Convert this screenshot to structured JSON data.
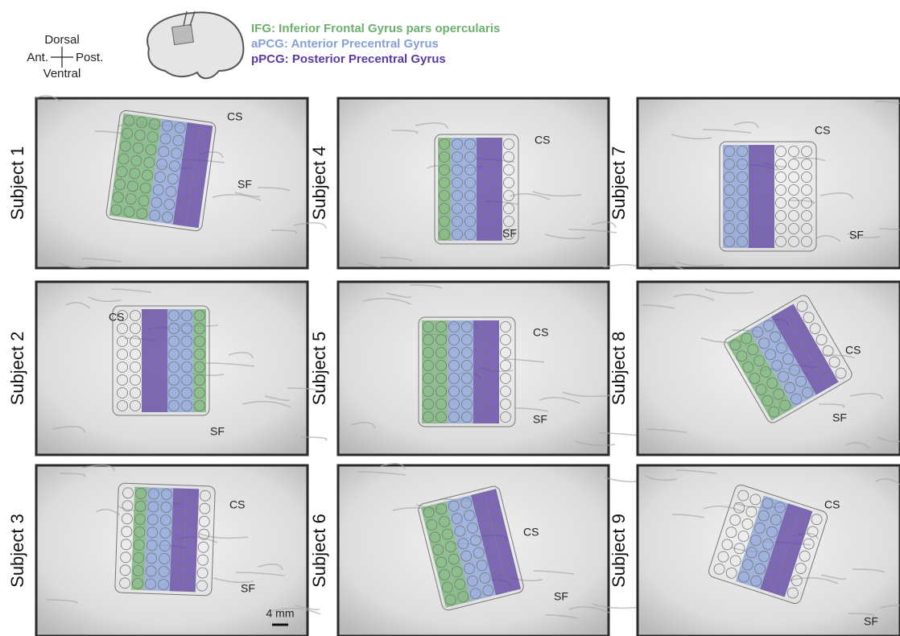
{
  "orientation": {
    "dorsal": "Dorsal",
    "anterior": "Ant.",
    "posterior": "Post.",
    "ventral": "Ventral"
  },
  "legend": [
    {
      "text": "IFG: Inferior Frontal Gyrus pars opercularis",
      "color": "#6eb06e"
    },
    {
      "text": "aPCG: Anterior Precentral Gyrus",
      "color": "#869fd8"
    },
    {
      "text": "pPCG: Posterior Precentral Gyrus",
      "color": "#5a3aa8"
    }
  ],
  "panels": [
    {
      "subject": "Subject 1",
      "labels": [
        "CS",
        "SF"
      ]
    },
    {
      "subject": "Subject 2",
      "labels": [
        "CS",
        "SF"
      ]
    },
    {
      "subject": "Subject 3",
      "labels": [
        "CS",
        "SF"
      ]
    },
    {
      "subject": "Subject 4",
      "labels": [
        "CS",
        "SF"
      ]
    },
    {
      "subject": "Subject 5",
      "labels": [
        "CS",
        "SF"
      ]
    },
    {
      "subject": "Subject 6",
      "labels": [
        "CS",
        "SF"
      ]
    },
    {
      "subject": "Subject 7",
      "labels": [
        "CS",
        "SF"
      ]
    },
    {
      "subject": "Subject 8",
      "labels": [
        "CS",
        "SF"
      ]
    },
    {
      "subject": "Subject 9",
      "labels": [
        "CS",
        "SF"
      ]
    }
  ],
  "scale_bar": "4 mm"
}
